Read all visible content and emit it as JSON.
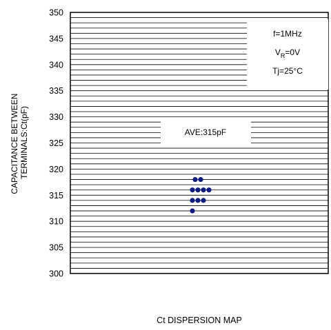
{
  "chart_data": {
    "type": "scatter",
    "title": "Ct DISPERSION MAP",
    "ylabel_lines": [
      "CAPACITANCE BETWEEN",
      "TERMINALS:Ct(pF)"
    ],
    "xlabel": "",
    "ylim": [
      300,
      350
    ],
    "yticks": [
      300,
      305,
      310,
      315,
      320,
      325,
      330,
      335,
      340,
      345,
      350
    ],
    "minor_grid_step": 1,
    "grid": true,
    "conditions": {
      "freq": "f=1MHz",
      "vr_main": "V",
      "vr_sub": "R",
      "vr_value": "=0V",
      "tj": "Tj=25°C"
    },
    "average_label": "AVE:315pF",
    "points": [
      {
        "x": -0.5,
        "y": 318
      },
      {
        "x": 0.5,
        "y": 318
      },
      {
        "x": -1,
        "y": 316
      },
      {
        "x": 0,
        "y": 316
      },
      {
        "x": 1,
        "y": 316
      },
      {
        "x": 2,
        "y": 316
      },
      {
        "x": -1,
        "y": 314
      },
      {
        "x": 0,
        "y": 314
      },
      {
        "x": 1,
        "y": 314
      },
      {
        "x": -1,
        "y": 312
      }
    ],
    "marker_color": "#0d1a82"
  }
}
